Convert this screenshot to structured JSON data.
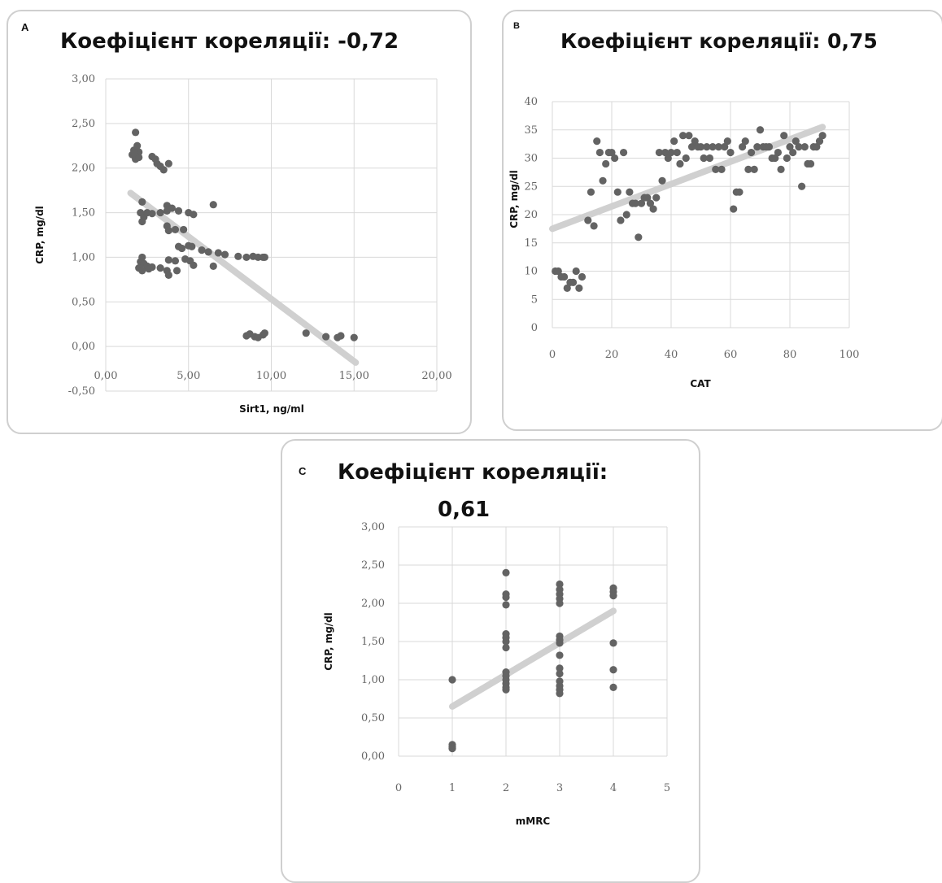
{
  "chart_data": [
    {
      "panel": "A",
      "type": "scatter",
      "title": "Коефіцієнт кореляції: -0,72",
      "xlabel": "Sirt1, ng/ml",
      "ylabel": "CRP, mg/dl",
      "xlim": [
        0,
        20
      ],
      "ylim": [
        -0.5,
        3
      ],
      "x_ticks": [
        "0,00",
        "5,00",
        "10,00",
        "15,00",
        "20,00"
      ],
      "y_ticks": [
        "-0,50",
        "0,00",
        "0,50",
        "1,00",
        "1,50",
        "2,00",
        "2,50",
        "3,00"
      ],
      "grid": true,
      "colors": {
        "points": "#636363",
        "trendline": "#d0d0d0",
        "grid": "#d9d9d9"
      },
      "trendline": [
        [
          1.5,
          1.72
        ],
        [
          15.1,
          -0.18
        ]
      ],
      "points": [
        [
          1.8,
          2.4
        ],
        [
          1.7,
          2.2
        ],
        [
          1.6,
          2.15
        ],
        [
          1.9,
          2.25
        ],
        [
          2.0,
          2.18
        ],
        [
          1.8,
          2.1
        ],
        [
          2.0,
          2.12
        ],
        [
          1.7,
          2.17
        ],
        [
          2.8,
          2.13
        ],
        [
          3.0,
          2.1
        ],
        [
          3.1,
          2.05
        ],
        [
          3.3,
          2.02
        ],
        [
          3.5,
          1.98
        ],
        [
          3.8,
          2.05
        ],
        [
          2.2,
          1.62
        ],
        [
          2.1,
          1.5
        ],
        [
          2.3,
          1.45
        ],
        [
          2.2,
          1.4
        ],
        [
          2.5,
          1.5
        ],
        [
          2.8,
          1.49
        ],
        [
          3.3,
          1.5
        ],
        [
          3.7,
          1.58
        ],
        [
          3.7,
          1.52
        ],
        [
          4.0,
          1.55
        ],
        [
          4.4,
          1.52
        ],
        [
          5.0,
          1.5
        ],
        [
          5.3,
          1.48
        ],
        [
          6.5,
          1.59
        ],
        [
          3.7,
          1.35
        ],
        [
          3.8,
          1.3
        ],
        [
          4.2,
          1.31
        ],
        [
          4.7,
          1.31
        ],
        [
          4.4,
          1.12
        ],
        [
          4.6,
          1.1
        ],
        [
          5.0,
          1.13
        ],
        [
          5.2,
          1.12
        ],
        [
          5.8,
          1.08
        ],
        [
          6.2,
          1.06
        ],
        [
          6.8,
          1.05
        ],
        [
          7.2,
          1.03
        ],
        [
          8.0,
          1.01
        ],
        [
          8.5,
          1.0
        ],
        [
          8.9,
          1.01
        ],
        [
          9.2,
          1.0
        ],
        [
          9.5,
          1.0
        ],
        [
          9.6,
          1.0
        ],
        [
          2.1,
          0.95
        ],
        [
          2.3,
          0.93
        ],
        [
          2.5,
          0.9
        ],
        [
          2.8,
          0.89
        ],
        [
          3.3,
          0.88
        ],
        [
          3.8,
          0.97
        ],
        [
          4.2,
          0.96
        ],
        [
          4.8,
          0.98
        ],
        [
          5.1,
          0.96
        ],
        [
          5.3,
          0.91
        ],
        [
          6.5,
          0.9
        ],
        [
          2.0,
          0.88
        ],
        [
          2.2,
          0.85
        ],
        [
          2.6,
          0.87
        ],
        [
          3.7,
          0.85
        ],
        [
          3.8,
          0.8
        ],
        [
          4.3,
          0.85
        ],
        [
          2.2,
          1.0
        ],
        [
          8.5,
          0.12
        ],
        [
          8.7,
          0.14
        ],
        [
          9.0,
          0.11
        ],
        [
          9.2,
          0.1
        ],
        [
          9.5,
          0.13
        ],
        [
          9.6,
          0.15
        ],
        [
          12.1,
          0.15
        ],
        [
          13.3,
          0.11
        ],
        [
          14.0,
          0.1
        ],
        [
          14.2,
          0.12
        ],
        [
          15.0,
          0.1
        ]
      ]
    },
    {
      "panel": "B",
      "type": "scatter",
      "title": "Коефіцієнт кореляції: 0,75",
      "xlabel": "CAT",
      "ylabel": "CRP, mg/dl",
      "xlim": [
        0,
        100
      ],
      "ylim": [
        0,
        40
      ],
      "x_ticks": [
        "0",
        "20",
        "40",
        "60",
        "80",
        "100"
      ],
      "y_ticks": [
        "0",
        "5",
        "10",
        "15",
        "20",
        "25",
        "30",
        "35",
        "40"
      ],
      "grid": true,
      "colors": {
        "points": "#636363",
        "trendline": "#d0d0d0",
        "grid": "#d9d9d9"
      },
      "trendline": [
        [
          0,
          17.5
        ],
        [
          91,
          35.5
        ]
      ],
      "points": [
        [
          1,
          10
        ],
        [
          2,
          10
        ],
        [
          3,
          9
        ],
        [
          4,
          9
        ],
        [
          5,
          7
        ],
        [
          6,
          8
        ],
        [
          7,
          8
        ],
        [
          8,
          10
        ],
        [
          9,
          7
        ],
        [
          10,
          9
        ],
        [
          12,
          19
        ],
        [
          13,
          24
        ],
        [
          14,
          18
        ],
        [
          15,
          33
        ],
        [
          16,
          31
        ],
        [
          17,
          26
        ],
        [
          18,
          29
        ],
        [
          19,
          31
        ],
        [
          20,
          31
        ],
        [
          21,
          30
        ],
        [
          22,
          24
        ],
        [
          23,
          19
        ],
        [
          24,
          31
        ],
        [
          25,
          20
        ],
        [
          26,
          24
        ],
        [
          27,
          22
        ],
        [
          28,
          22
        ],
        [
          29,
          16
        ],
        [
          30,
          22
        ],
        [
          31,
          23
        ],
        [
          32,
          23
        ],
        [
          33,
          22
        ],
        [
          34,
          21
        ],
        [
          35,
          23
        ],
        [
          36,
          31
        ],
        [
          37,
          26
        ],
        [
          38,
          31
        ],
        [
          39,
          30
        ],
        [
          40,
          31
        ],
        [
          41,
          33
        ],
        [
          42,
          31
        ],
        [
          43,
          29
        ],
        [
          44,
          34
        ],
        [
          45,
          30
        ],
        [
          46,
          34
        ],
        [
          47,
          32
        ],
        [
          48,
          33
        ],
        [
          49,
          32
        ],
        [
          50,
          32
        ],
        [
          51,
          30
        ],
        [
          52,
          32
        ],
        [
          53,
          30
        ],
        [
          54,
          32
        ],
        [
          55,
          28
        ],
        [
          56,
          32
        ],
        [
          57,
          28
        ],
        [
          58,
          32
        ],
        [
          59,
          33
        ],
        [
          60,
          31
        ],
        [
          61,
          21
        ],
        [
          62,
          24
        ],
        [
          63,
          24
        ],
        [
          64,
          32
        ],
        [
          65,
          33
        ],
        [
          66,
          28
        ],
        [
          67,
          31
        ],
        [
          68,
          28
        ],
        [
          69,
          32
        ],
        [
          70,
          35
        ],
        [
          71,
          32
        ],
        [
          72,
          32
        ],
        [
          73,
          32
        ],
        [
          74,
          30
        ],
        [
          75,
          30
        ],
        [
          76,
          31
        ],
        [
          77,
          28
        ],
        [
          78,
          34
        ],
        [
          79,
          30
        ],
        [
          80,
          32
        ],
        [
          81,
          31
        ],
        [
          82,
          33
        ],
        [
          83,
          32
        ],
        [
          84,
          25
        ],
        [
          85,
          32
        ],
        [
          86,
          29
        ],
        [
          87,
          29
        ],
        [
          88,
          32
        ],
        [
          89,
          32
        ],
        [
          90,
          33
        ],
        [
          91,
          34
        ]
      ]
    },
    {
      "panel": "C",
      "type": "scatter",
      "title_line1": "Коефіцієнт кореляції:",
      "title_line2": "0,61",
      "xlabel": "mMRC",
      "ylabel": "CRP, mg/dl",
      "xlim": [
        0,
        5
      ],
      "ylim": [
        0,
        3
      ],
      "x_ticks": [
        "0",
        "1",
        "2",
        "3",
        "4",
        "5"
      ],
      "y_ticks": [
        "0,00",
        "0,50",
        "1,00",
        "1,50",
        "2,00",
        "2,50",
        "3,00"
      ],
      "grid": true,
      "colors": {
        "points": "#636363",
        "trendline": "#d0d0d0",
        "grid": "#d9d9d9"
      },
      "trendline": [
        [
          1,
          0.65
        ],
        [
          4,
          1.9
        ]
      ],
      "points": [
        [
          1,
          1.0
        ],
        [
          1,
          0.15
        ],
        [
          1,
          0.12
        ],
        [
          1,
          0.1
        ],
        [
          2,
          2.4
        ],
        [
          2,
          2.12
        ],
        [
          2,
          2.08
        ],
        [
          2,
          1.98
        ],
        [
          2,
          1.6
        ],
        [
          2,
          1.55
        ],
        [
          2,
          1.5
        ],
        [
          2,
          1.42
        ],
        [
          2,
          1.1
        ],
        [
          2,
          1.05
        ],
        [
          2,
          1.0
        ],
        [
          2,
          0.95
        ],
        [
          2,
          0.9
        ],
        [
          2,
          0.87
        ],
        [
          3,
          2.25
        ],
        [
          3,
          2.18
        ],
        [
          3,
          2.12
        ],
        [
          3,
          2.06
        ],
        [
          3,
          2.0
        ],
        [
          3,
          1.57
        ],
        [
          3,
          1.52
        ],
        [
          3,
          1.48
        ],
        [
          3,
          1.32
        ],
        [
          3,
          1.15
        ],
        [
          3,
          1.08
        ],
        [
          3,
          0.98
        ],
        [
          3,
          0.92
        ],
        [
          3,
          0.87
        ],
        [
          3,
          0.82
        ],
        [
          4,
          2.2
        ],
        [
          4,
          2.15
        ],
        [
          4,
          2.1
        ],
        [
          4,
          1.48
        ],
        [
          4,
          1.13
        ],
        [
          4,
          0.9
        ]
      ]
    }
  ]
}
